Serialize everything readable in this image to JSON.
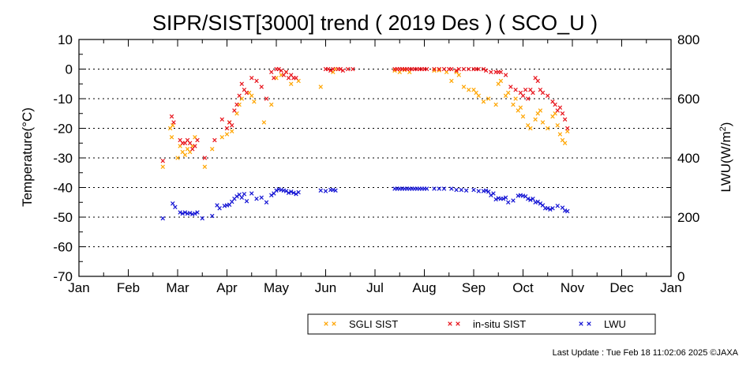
{
  "chart_data": {
    "type": "scatter",
    "title": "SIPR/SIST[3000] trend ( 2019 Des ) ( SCO_U )",
    "ylabel": "Temperature(°C)",
    "y2label_main": "LWU(W/m",
    "y2label_sup": "2",
    "y2label_end": ")",
    "xlim": [
      0,
      12
    ],
    "ylim": [
      -70,
      10
    ],
    "y2lim": [
      0,
      800
    ],
    "x_ticks": [
      "Jan",
      "Feb",
      "Mar",
      "Apr",
      "May",
      "Jun",
      "Jul",
      "Aug",
      "Sep",
      "Oct",
      "Nov",
      "Dec",
      "Jan"
    ],
    "y_ticks": [
      "10",
      "0",
      "-10",
      "-20",
      "-30",
      "-40",
      "-50",
      "-60",
      "-70"
    ],
    "y2_ticks": [
      "800",
      "600",
      "400",
      "200",
      "0"
    ],
    "grid": "horizontal dotted",
    "legend_position": "bottom-right",
    "series": [
      {
        "name": "SGLI SIST",
        "color": "#ffa500",
        "axis": "left",
        "x": [
          1.7,
          1.85,
          1.88,
          1.9,
          2.0,
          2.05,
          2.1,
          2.15,
          2.2,
          2.25,
          2.3,
          2.35,
          2.55,
          2.7,
          2.9,
          3.0,
          3.05,
          3.1,
          3.2,
          3.25,
          3.3,
          3.45,
          3.5,
          3.55,
          3.75,
          3.9,
          4.0,
          4.1,
          4.2,
          4.3,
          4.45,
          4.9,
          5.15,
          5.2,
          6.4,
          6.5,
          6.55,
          6.6,
          6.7,
          7.2,
          7.3,
          7.45,
          7.55,
          7.65,
          7.7,
          7.8,
          7.9,
          8.0,
          8.05,
          8.1,
          8.2,
          8.3,
          8.45,
          8.5,
          8.55,
          8.65,
          8.7,
          8.8,
          8.85,
          8.9,
          8.95,
          9.0,
          9.1,
          9.15,
          9.25,
          9.3,
          9.35,
          9.4,
          9.5,
          9.6,
          9.65,
          9.7,
          9.75,
          9.8,
          9.85,
          9.9
        ],
        "y": [
          -33,
          -20,
          -23,
          -19,
          -30,
          -26,
          -28,
          -29,
          -27,
          -28,
          -26,
          -23,
          -33,
          -27,
          -23,
          -22,
          -18,
          -21,
          -15,
          -12,
          -10,
          -8,
          -9,
          -11,
          -18,
          -12,
          -3,
          -2,
          -1,
          -5,
          -4,
          -6,
          -1,
          0,
          -0.5,
          -1,
          0,
          -0.3,
          -1,
          -0.5,
          -0.4,
          -1,
          -4,
          -1,
          -2,
          -6,
          -7,
          -7,
          -8,
          -9,
          -11,
          -10,
          -12,
          -5,
          -4,
          -9,
          -8,
          -12,
          -10,
          -14,
          -13,
          -16,
          -19,
          -20,
          -17,
          -15,
          -14,
          -18,
          -20,
          -16,
          -15,
          -19,
          -22,
          -24,
          -25,
          -21
        ]
      },
      {
        "name": "in-situ SIST",
        "color": "#e8141c",
        "axis": "left",
        "x": [
          1.7,
          1.88,
          1.92,
          2.05,
          2.1,
          2.15,
          2.2,
          2.25,
          2.3,
          2.35,
          2.4,
          2.55,
          2.75,
          2.9,
          3.0,
          3.05,
          3.1,
          3.15,
          3.2,
          3.25,
          3.3,
          3.35,
          3.4,
          3.5,
          3.6,
          3.7,
          3.8,
          3.9,
          3.95,
          4.0,
          4.05,
          4.1,
          4.15,
          4.2,
          4.25,
          4.3,
          4.35,
          4.4,
          5.0,
          5.05,
          5.1,
          5.15,
          5.25,
          5.3,
          5.35,
          5.45,
          5.55,
          6.4,
          6.45,
          6.5,
          6.55,
          6.6,
          6.65,
          6.7,
          6.75,
          6.8,
          6.85,
          6.9,
          6.95,
          7.0,
          7.05,
          7.2,
          7.3,
          7.4,
          7.5,
          7.55,
          7.65,
          7.7,
          7.8,
          7.9,
          8.0,
          8.05,
          8.1,
          8.2,
          8.25,
          8.35,
          8.45,
          8.5,
          8.55,
          8.65,
          8.75,
          8.85,
          8.95,
          9.0,
          9.05,
          9.1,
          9.15,
          9.2,
          9.25,
          9.3,
          9.35,
          9.4,
          9.5,
          9.6,
          9.65,
          9.7,
          9.75,
          9.8,
          9.85,
          9.9
        ],
        "y": [
          -31,
          -16,
          -18,
          -24,
          -25,
          -25,
          -24,
          -25,
          -27,
          -26,
          -24,
          -30,
          -24,
          -17,
          -20,
          -18,
          -19,
          -14,
          -12,
          -9,
          -5,
          -7,
          -8,
          -3,
          -4,
          -6,
          -10,
          -1,
          -3,
          0,
          0,
          -0.5,
          -2,
          -1,
          -3,
          -2,
          -3,
          -3,
          0,
          0,
          -0.5,
          0,
          0,
          0,
          -0.5,
          0,
          0,
          0,
          0,
          0,
          0,
          0,
          0,
          0,
          0,
          0,
          0,
          0,
          0,
          0,
          0,
          0,
          0,
          0,
          0,
          0,
          -0.5,
          0,
          0,
          0,
          0,
          0,
          0,
          0,
          -0.5,
          -1,
          -1,
          -1,
          -1,
          -2,
          -6,
          -7,
          -8,
          -9,
          -7,
          -10,
          -7,
          -8,
          -3,
          -4,
          -7,
          -8,
          -9,
          -11,
          -12,
          -14,
          -13,
          -15,
          -17,
          -20
        ]
      },
      {
        "name": "LWU",
        "color": "#1414d4",
        "axis": "right",
        "x": [
          1.7,
          1.9,
          1.95,
          2.05,
          2.1,
          2.15,
          2.2,
          2.25,
          2.3,
          2.35,
          2.4,
          2.5,
          2.7,
          2.8,
          2.85,
          2.95,
          3.0,
          3.05,
          3.1,
          3.15,
          3.2,
          3.25,
          3.3,
          3.35,
          3.4,
          3.5,
          3.6,
          3.7,
          3.8,
          3.9,
          3.95,
          4.0,
          4.05,
          4.1,
          4.15,
          4.2,
          4.25,
          4.3,
          4.35,
          4.4,
          4.45,
          4.9,
          5.0,
          5.1,
          5.15,
          5.2,
          6.4,
          6.45,
          6.5,
          6.55,
          6.6,
          6.65,
          6.7,
          6.75,
          6.8,
          6.85,
          6.9,
          6.95,
          7.0,
          7.05,
          7.2,
          7.3,
          7.4,
          7.55,
          7.65,
          7.75,
          7.85,
          8.0,
          8.1,
          8.2,
          8.25,
          8.3,
          8.35,
          8.4,
          8.45,
          8.5,
          8.55,
          8.6,
          8.65,
          8.7,
          8.8,
          8.9,
          8.95,
          9.0,
          9.05,
          9.1,
          9.15,
          9.2,
          9.25,
          9.3,
          9.35,
          9.4,
          9.45,
          9.5,
          9.55,
          9.6,
          9.7,
          9.8,
          9.85,
          9.9
        ],
        "y": [
          196,
          246,
          234,
          216,
          212,
          216,
          212,
          214,
          210,
          212,
          216,
          196,
          204,
          240,
          230,
          238,
          240,
          242,
          252,
          262,
          270,
          276,
          266,
          278,
          254,
          280,
          262,
          266,
          250,
          274,
          280,
          290,
          294,
          292,
          290,
          288,
          282,
          286,
          282,
          278,
          284,
          290,
          288,
          292,
          292,
          290,
          296,
          296,
          296,
          296,
          296,
          296,
          296,
          296,
          296,
          296,
          296,
          296,
          296,
          296,
          296,
          296,
          296,
          296,
          292,
          292,
          290,
          292,
          288,
          288,
          290,
          286,
          274,
          280,
          260,
          264,
          262,
          262,
          266,
          250,
          256,
          272,
          274,
          272,
          270,
          262,
          258,
          262,
          250,
          252,
          246,
          240,
          230,
          230,
          226,
          230,
          238,
          232,
          222,
          220
        ]
      }
    ],
    "legend": [
      "SGLI SIST",
      "in-situ SIST",
      "LWU"
    ]
  },
  "footer": {
    "last_update": "Last Update : Tue Feb 18 11:02:06 2025  ©JAXA"
  }
}
